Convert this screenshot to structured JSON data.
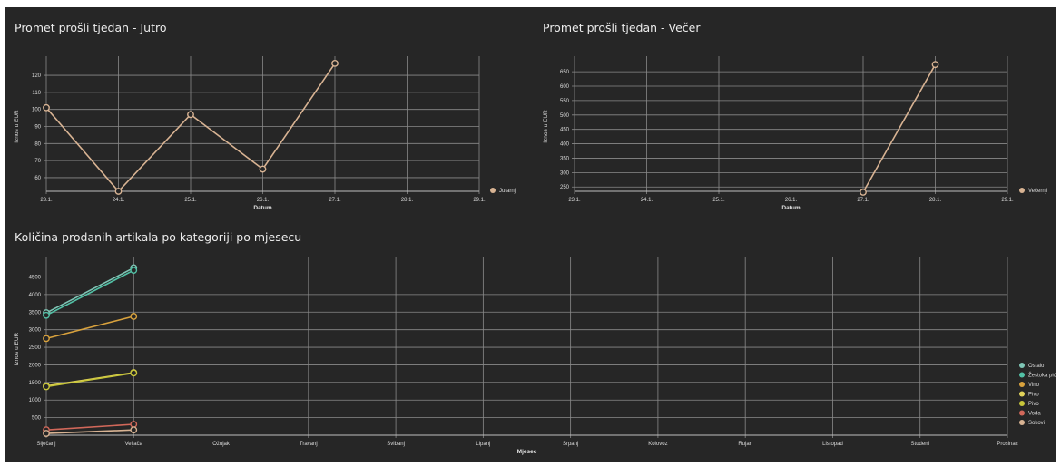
{
  "panels": {
    "morning": {
      "title": "Promet prošli tjedan - Jutro",
      "chart_data": {
        "type": "line",
        "categories": [
          "23.1.",
          "24.1.",
          "25.1.",
          "26.1.",
          "27.1.",
          "28.1.",
          "29.1."
        ],
        "series": [
          {
            "name": "Jutarnji",
            "color": "#d8b393",
            "values": [
              101,
              52,
              97,
              65,
              127,
              null,
              null
            ]
          }
        ],
        "xlabel": "Datum",
        "ylabel": "Iznos u EUR",
        "ylim": [
          52,
          128
        ],
        "yticks": [
          60,
          70,
          80,
          90,
          100,
          110,
          120
        ],
        "grid": true,
        "legend": "right"
      }
    },
    "evening": {
      "title": "Promet prošli tjedan - Večer",
      "chart_data": {
        "type": "line",
        "categories": [
          "23.1.",
          "24.1.",
          "25.1.",
          "26.1.",
          "27.1.",
          "28.1.",
          "29.1."
        ],
        "series": [
          {
            "name": "Večernji",
            "color": "#d8b393",
            "values": [
              null,
              null,
              null,
              null,
              232,
              675,
              null
            ]
          }
        ],
        "xlabel": "Datum",
        "ylabel": "Iznos u EUR",
        "ylim": [
          235,
          685
        ],
        "yticks": [
          250,
          300,
          350,
          400,
          450,
          500,
          550,
          600,
          650
        ],
        "grid": true,
        "legend": "right"
      }
    },
    "monthly": {
      "title": "Količina prodanih artikala po kategoriji po mjesecu",
      "chart_data": {
        "type": "line",
        "categories": [
          "Siječanj",
          "Veljača",
          "Ožujak",
          "Travanj",
          "Svibanj",
          "Lipanj",
          "Srpanj",
          "Kolovoz",
          "Rujan",
          "Listopad",
          "Studeni",
          "Prosinac"
        ],
        "series": [
          {
            "name": "Ostalo",
            "color": "#7fc6b6",
            "values": [
              3480,
              4760,
              null,
              null,
              null,
              null,
              null,
              null,
              null,
              null,
              null,
              null
            ]
          },
          {
            "name": "Žestoka pića",
            "color": "#52c1a6",
            "values": [
              3410,
              4690,
              null,
              null,
              null,
              null,
              null,
              null,
              null,
              null,
              null,
              null
            ]
          },
          {
            "name": "Vino",
            "color": "#d9a23d",
            "values": [
              2750,
              3380,
              null,
              null,
              null,
              null,
              null,
              null,
              null,
              null,
              null,
              null
            ]
          },
          {
            "name": "Pivo",
            "color": "#e2d35a",
            "values": [
              1400,
              1780,
              null,
              null,
              null,
              null,
              null,
              null,
              null,
              null,
              null,
              null
            ]
          },
          {
            "name": "Pivo",
            "color": "#c8c63a",
            "values": [
              1380,
              1770,
              null,
              null,
              null,
              null,
              null,
              null,
              null,
              null,
              null,
              null
            ]
          },
          {
            "name": "Voda",
            "color": "#d2685a",
            "values": [
              150,
              310,
              null,
              null,
              null,
              null,
              null,
              null,
              null,
              null,
              null,
              null
            ]
          },
          {
            "name": "Sokovi",
            "color": "#d8b393",
            "values": [
              50,
              150,
              null,
              null,
              null,
              null,
              null,
              null,
              null,
              null,
              null,
              null
            ]
          }
        ],
        "xlabel": "Mjesec",
        "ylabel": "Iznos u EUR",
        "ylim": [
          0,
          4900
        ],
        "yticks": [
          500,
          1000,
          1500,
          2000,
          2500,
          3000,
          3500,
          4000,
          4500
        ],
        "grid": true,
        "legend": "right"
      }
    }
  }
}
